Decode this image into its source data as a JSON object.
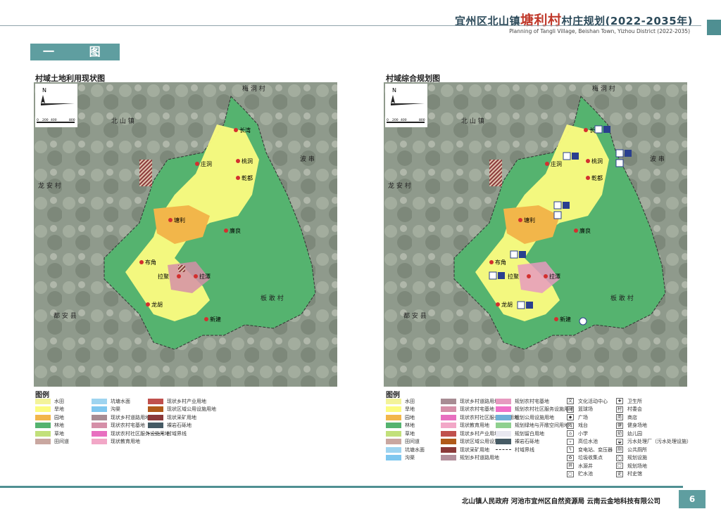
{
  "header": {
    "title_prefix": "宜州区北山镇",
    "title_village": "塘利村",
    "title_suffix": "村庄规划(2022-2035年)",
    "subtitle": "Planning of Tangli Village, Beishan Town, Yizhou District (2022-2035)"
  },
  "section_label": "一 图",
  "map_left": {
    "title": "村域土地利用现状图",
    "legend_title": "图例"
  },
  "map_right": {
    "title": "村域综合规划图",
    "legend_title": "图例"
  },
  "map_labels": {
    "north": "N",
    "scale_0": "0",
    "scale_200": "200",
    "scale_400": "400",
    "scale_800": "800",
    "neighbors": [
      "梅 洞 村",
      "北 山 镇",
      "波 串",
      "龙 安 村",
      "板 敢 村",
      "都 安 县"
    ],
    "villages": [
      "长湾",
      "庄洞",
      "桃洞",
      "乾都",
      "塘利",
      "廉良",
      "布角",
      "拉聚",
      "拉潭",
      "龙胡",
      "新建"
    ]
  },
  "legend_left": [
    {
      "label": "水田",
      "color": "#f3f39a"
    },
    {
      "label": "旱地",
      "color": "#fcfc80"
    },
    {
      "label": "园地",
      "color": "#f2b64a"
    },
    {
      "label": "林地",
      "color": "#55b36f"
    },
    {
      "label": "草地",
      "color": "#c2e07a"
    },
    {
      "label": "田间道",
      "color": "#c9a7a0"
    },
    {
      "label": "坑塘水面",
      "color": "#9ed4f0"
    },
    {
      "label": "沟渠",
      "color": "#7fc7ef"
    },
    {
      "label": "现状乡村道路用地",
      "color": "#a78c93"
    },
    {
      "label": "现状农村宅基地",
      "color": "#d58fa8"
    },
    {
      "label": "现状农村社区服务设施用地",
      "color": "#e86fc0"
    },
    {
      "label": "现状教育用地",
      "color": "#f2a7c7"
    },
    {
      "label": "现状乡村产业用地",
      "color": "#c0504d"
    },
    {
      "label": "现状区域公用设施用地",
      "color": "#b05a1a"
    },
    {
      "label": "现状采矿用地",
      "color": "#8b3a3a"
    },
    {
      "label": "裸岩石砾地",
      "color": "#455a64"
    },
    {
      "label": "村域界线",
      "color": "#333333"
    }
  ],
  "legend_right": [
    {
      "label": "水田",
      "color": "#f3f39a"
    },
    {
      "label": "旱地",
      "color": "#fcfc80"
    },
    {
      "label": "园地",
      "color": "#f2b64a"
    },
    {
      "label": "林地",
      "color": "#55b36f"
    },
    {
      "label": "草地",
      "color": "#c2e07a"
    },
    {
      "label": "田间道",
      "color": "#c9a7a0"
    },
    {
      "label": "坑塘水面",
      "color": "#9ed4f0"
    },
    {
      "label": "沟渠",
      "color": "#7fc7ef"
    },
    {
      "label": "现状乡村道路用地",
      "color": "#a78c93"
    },
    {
      "label": "现状农村宅基地",
      "color": "#d58fa8"
    },
    {
      "label": "现状农村社区服务设施用地",
      "color": "#e86fc0"
    },
    {
      "label": "现状教育用地",
      "color": "#f2a7c7"
    },
    {
      "label": "现状乡村产业用地",
      "color": "#c0504d"
    },
    {
      "label": "现状区域公用设施用地",
      "color": "#b05a1a"
    },
    {
      "label": "现状采矿用地",
      "color": "#8b3a3a"
    },
    {
      "label": "规划乡村道路用地",
      "color": "#b38f9c"
    },
    {
      "label": "规划农村宅基地",
      "color": "#e69ac0"
    },
    {
      "label": "规划农村社区服务设施用地",
      "color": "#f06fc8"
    },
    {
      "label": "规划公用设施用地",
      "color": "#6fb0d8"
    },
    {
      "label": "规划绿地与开敞空间用地",
      "color": "#8fd08f"
    },
    {
      "label": "规划留白用地",
      "color": "#e8e8f0"
    },
    {
      "label": "裸岩石砾地",
      "color": "#455a64"
    },
    {
      "label": "村域界线",
      "color": "#333333"
    }
  ],
  "legend_icons": [
    {
      "label": "文化活动中心",
      "glyph": "文"
    },
    {
      "label": "篮球场",
      "glyph": "▭"
    },
    {
      "label": "广场",
      "glyph": "◆"
    },
    {
      "label": "戏台",
      "glyph": "戏"
    },
    {
      "label": "小学",
      "glyph": "⌂"
    },
    {
      "label": "高位水池",
      "glyph": "▿"
    },
    {
      "label": "变电站、变压器",
      "glyph": "ϟ"
    },
    {
      "label": "垃圾收集点",
      "glyph": "♻"
    },
    {
      "label": "水源井",
      "glyph": "井"
    },
    {
      "label": "贮水池",
      "glyph": "▢"
    },
    {
      "label": "卫生所",
      "glyph": "✚"
    },
    {
      "label": "村委会",
      "glyph": "村"
    },
    {
      "label": "商店",
      "glyph": "商"
    },
    {
      "label": "健身场地",
      "glyph": "健"
    },
    {
      "label": "幼儿园",
      "glyph": "幼"
    },
    {
      "label": "污水处理厂（污水处理设施）",
      "glyph": "◒"
    },
    {
      "label": "公共厕所",
      "glyph": "厕"
    },
    {
      "label": "规划设施",
      "glyph": "◯"
    },
    {
      "label": "规划场地",
      "glyph": "□"
    },
    {
      "label": "村史馆",
      "glyph": "史"
    }
  ],
  "footer": {
    "orgs": "北山镇人民政府   河池市宜州区自然资源局   云南云金地科技有限公司",
    "page": "6"
  }
}
